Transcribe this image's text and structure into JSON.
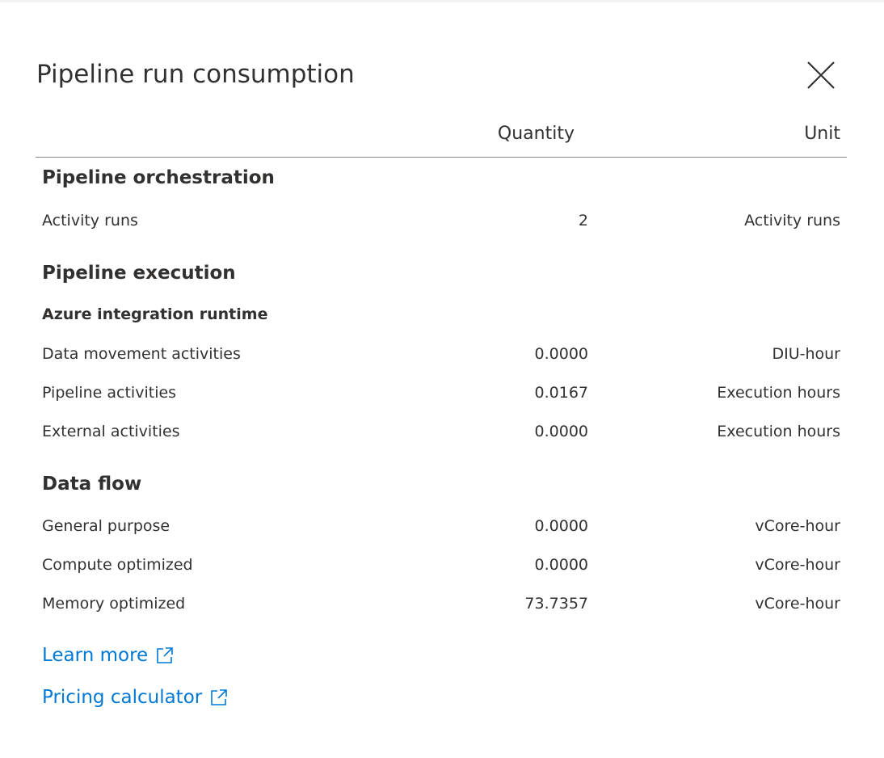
{
  "dialog": {
    "title": "Pipeline run consumption",
    "close_icon": "close-icon"
  },
  "columns": {
    "quantity": "Quantity",
    "unit": "Unit"
  },
  "sections": {
    "orchestration": {
      "title": "Pipeline orchestration",
      "rows": [
        {
          "label": "Activity runs",
          "quantity": "2",
          "unit": "Activity runs"
        }
      ]
    },
    "execution": {
      "title": "Pipeline execution",
      "subtitle": "Azure integration runtime",
      "rows": [
        {
          "label": "Data movement activities",
          "quantity": "0.0000",
          "unit": "DIU-hour"
        },
        {
          "label": "Pipeline activities",
          "quantity": "0.0167",
          "unit": "Execution hours"
        },
        {
          "label": "External activities",
          "quantity": "0.0000",
          "unit": "Execution hours"
        }
      ]
    },
    "dataflow": {
      "title": "Data flow",
      "rows": [
        {
          "label": "General purpose",
          "quantity": "0.0000",
          "unit": "vCore-hour"
        },
        {
          "label": "Compute optimized",
          "quantity": "0.0000",
          "unit": "vCore-hour"
        },
        {
          "label": "Memory optimized",
          "quantity": "73.7357",
          "unit": "vCore-hour"
        }
      ]
    }
  },
  "links": {
    "learn_more": "Learn more",
    "pricing_calculator": "Pricing calculator",
    "icon": "external-link-icon"
  },
  "colors": {
    "link": "#0078d4",
    "text": "#323130",
    "rule": "#8a8886"
  }
}
